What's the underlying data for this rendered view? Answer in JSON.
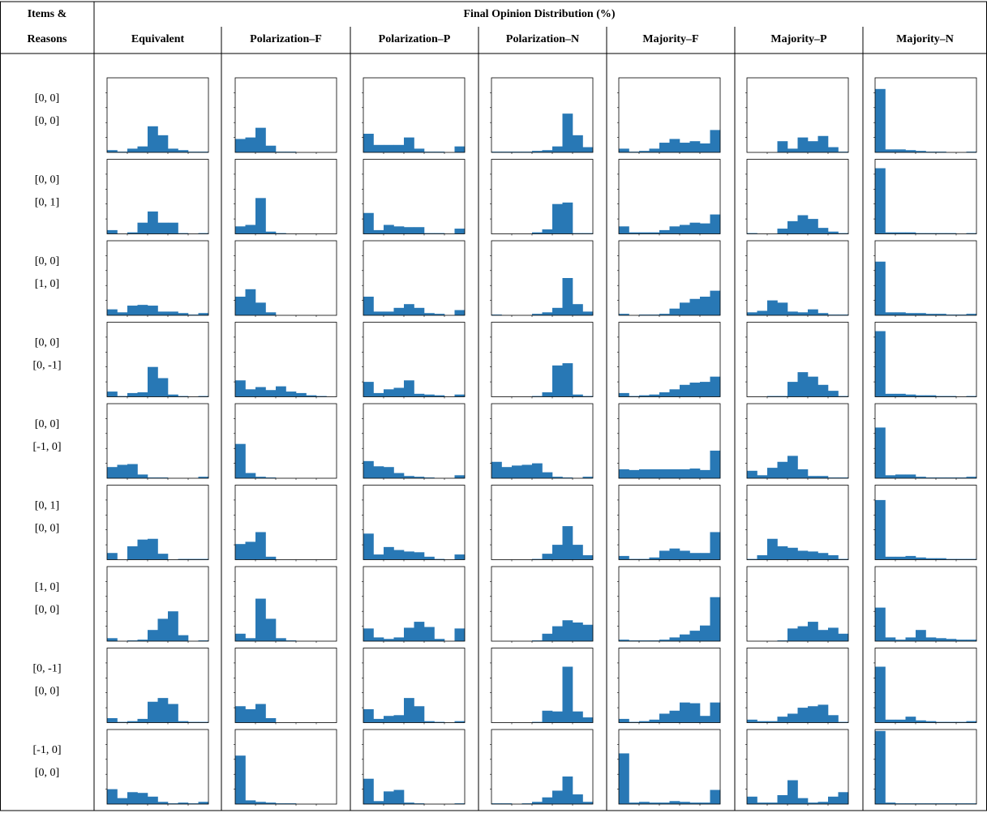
{
  "table": {
    "header_left_line1": "Items &",
    "header_left_line2": "Reasons",
    "header_title": "Final Opinion Distribution (%)",
    "columns": [
      "Equivalent",
      "Polarization–F",
      "Polarization–P",
      "Polarization–N",
      "Majority–F",
      "Majority–P",
      "Majority–N"
    ],
    "rows": [
      {
        "line1": "[0, 0]",
        "line2": "[0, 0]"
      },
      {
        "line1": "[0, 0]",
        "line2": "[0, 1]"
      },
      {
        "line1": "[0, 0]",
        "line2": "[1, 0]"
      },
      {
        "line1": "[0, 0]",
        "line2": "[0, -1]"
      },
      {
        "line1": "[0, 0]",
        "line2": "[-1, 0]"
      },
      {
        "line1": "[0, 1]",
        "line2": "[0, 0]"
      },
      {
        "line1": "[1, 0]",
        "line2": "[0, 0]"
      },
      {
        "line1": "[0, -1]",
        "line2": "[0, 0]"
      },
      {
        "line1": "[-1, 0]",
        "line2": "[0, 0]"
      }
    ]
  },
  "colors": {
    "bar": "#2878b5",
    "frame": "#000000"
  },
  "chart_data": {
    "type": "bar",
    "bins": 10,
    "ylim": [
      0,
      100
    ],
    "grid": false,
    "values": [
      [
        [
          3,
          1,
          5,
          8,
          35,
          23,
          5,
          3,
          1,
          1
        ],
        [
          18,
          20,
          33,
          9,
          1,
          1,
          0,
          0,
          0,
          0
        ],
        [
          25,
          10,
          10,
          10,
          20,
          5,
          1,
          1,
          0,
          8
        ],
        [
          1,
          1,
          1,
          1,
          2,
          3,
          8,
          52,
          23,
          7
        ],
        [
          5,
          1,
          2,
          5,
          13,
          18,
          13,
          15,
          12,
          30
        ],
        [
          0,
          0,
          0,
          15,
          5,
          20,
          15,
          22,
          7,
          1
        ],
        [
          85,
          4,
          4,
          3,
          2,
          1,
          1,
          0,
          0,
          1
        ]
      ],
      [
        [
          5,
          0,
          2,
          15,
          30,
          15,
          15,
          1,
          0,
          1
        ],
        [
          10,
          12,
          48,
          3,
          1,
          0,
          0,
          0,
          0,
          0
        ],
        [
          28,
          5,
          12,
          10,
          9,
          9,
          1,
          1,
          0,
          7
        ],
        [
          0,
          0,
          0,
          0,
          2,
          6,
          40,
          42,
          1,
          1
        ],
        [
          10,
          2,
          2,
          2,
          5,
          10,
          12,
          15,
          14,
          26
        ],
        [
          1,
          0,
          0,
          7,
          17,
          25,
          20,
          8,
          3,
          1
        ],
        [
          88,
          2,
          2,
          2,
          1,
          1,
          1,
          1,
          0,
          1
        ]
      ],
      [
        [
          8,
          4,
          13,
          14,
          13,
          5,
          5,
          3,
          1,
          3
        ],
        [
          25,
          35,
          17,
          4,
          0,
          0,
          0,
          0,
          0,
          0
        ],
        [
          25,
          5,
          5,
          10,
          15,
          10,
          3,
          2,
          0,
          7
        ],
        [
          1,
          0,
          0,
          0,
          2,
          4,
          10,
          50,
          15,
          5
        ],
        [
          2,
          0,
          1,
          1,
          2,
          9,
          17,
          22,
          25,
          33
        ],
        [
          4,
          6,
          20,
          17,
          5,
          4,
          8,
          3,
          1,
          1
        ],
        [
          72,
          4,
          4,
          3,
          3,
          2,
          2,
          1,
          1,
          2
        ]
      ],
      [
        [
          7,
          1,
          5,
          6,
          40,
          25,
          3,
          1,
          0,
          1
        ],
        [
          22,
          10,
          13,
          9,
          14,
          7,
          5,
          2,
          1,
          0
        ],
        [
          20,
          5,
          10,
          12,
          22,
          4,
          3,
          2,
          0,
          3
        ],
        [
          0,
          0,
          0,
          0,
          1,
          6,
          42,
          45,
          3,
          1
        ],
        [
          5,
          1,
          2,
          3,
          6,
          10,
          16,
          19,
          20,
          27
        ],
        [
          0,
          0,
          1,
          1,
          20,
          33,
          27,
          16,
          8,
          1
        ],
        [
          88,
          4,
          4,
          3,
          2,
          2,
          1,
          1,
          0,
          1
        ]
      ],
      [
        [
          15,
          18,
          19,
          5,
          1,
          1,
          0,
          0,
          0,
          2
        ],
        [
          46,
          7,
          2,
          1,
          0,
          0,
          0,
          0,
          0,
          0
        ],
        [
          23,
          16,
          15,
          7,
          3,
          2,
          1,
          0,
          0,
          4
        ],
        [
          22,
          15,
          17,
          18,
          20,
          8,
          2,
          1,
          0,
          2
        ],
        [
          12,
          11,
          12,
          12,
          12,
          12,
          12,
          13,
          11,
          37
        ],
        [
          10,
          4,
          14,
          22,
          30,
          12,
          3,
          3,
          1,
          1
        ],
        [
          68,
          4,
          5,
          5,
          2,
          1,
          1,
          1,
          1,
          2
        ]
      ],
      [
        [
          9,
          0,
          18,
          27,
          28,
          8,
          0,
          1,
          1,
          1
        ],
        [
          21,
          24,
          37,
          4,
          0,
          0,
          0,
          0,
          0,
          0
        ],
        [
          35,
          7,
          17,
          13,
          11,
          10,
          4,
          1,
          0,
          7
        ],
        [
          0,
          0,
          0,
          0,
          1,
          8,
          20,
          45,
          20,
          6
        ],
        [
          5,
          1,
          1,
          3,
          12,
          15,
          12,
          9,
          9,
          37
        ],
        [
          1,
          6,
          28,
          18,
          16,
          12,
          11,
          9,
          6,
          1
        ],
        [
          80,
          4,
          4,
          5,
          3,
          2,
          2,
          1,
          1,
          1
        ]
      ],
      [
        [
          4,
          0,
          1,
          2,
          15,
          30,
          40,
          8,
          0,
          1
        ],
        [
          10,
          4,
          57,
          30,
          4,
          1,
          0,
          0,
          0,
          0
        ],
        [
          17,
          5,
          3,
          5,
          18,
          26,
          19,
          3,
          0,
          17
        ],
        [
          0,
          0,
          0,
          0,
          1,
          10,
          20,
          28,
          25,
          22
        ],
        [
          2,
          1,
          1,
          1,
          2,
          5,
          9,
          14,
          21,
          59
        ],
        [
          0,
          0,
          0,
          1,
          17,
          20,
          26,
          15,
          18,
          10
        ],
        [
          45,
          5,
          2,
          5,
          15,
          5,
          4,
          3,
          2,
          2
        ]
      ],
      [
        [
          6,
          1,
          2,
          5,
          28,
          33,
          25,
          2,
          1,
          1
        ],
        [
          22,
          18,
          25,
          6,
          0,
          0,
          0,
          0,
          0,
          0
        ],
        [
          18,
          5,
          9,
          10,
          33,
          22,
          2,
          1,
          0,
          2
        ],
        [
          0,
          0,
          0,
          0,
          1,
          16,
          15,
          75,
          15,
          7
        ],
        [
          5,
          1,
          2,
          4,
          12,
          16,
          27,
          26,
          9,
          27
        ],
        [
          4,
          2,
          2,
          8,
          12,
          20,
          22,
          24,
          10,
          1
        ],
        [
          75,
          4,
          4,
          8,
          3,
          2,
          1,
          1,
          1,
          2
        ]
      ],
      [
        [
          20,
          8,
          16,
          15,
          10,
          3,
          1,
          2,
          1,
          3
        ],
        [
          65,
          5,
          3,
          2,
          1,
          1,
          0,
          0,
          0,
          0
        ],
        [
          34,
          4,
          17,
          19,
          2,
          1,
          0,
          0,
          0,
          1
        ],
        [
          1,
          1,
          0,
          1,
          3,
          9,
          18,
          37,
          13,
          3
        ],
        [
          68,
          2,
          3,
          2,
          2,
          4,
          3,
          2,
          2,
          19
        ],
        [
          10,
          2,
          2,
          12,
          32,
          8,
          2,
          3,
          10,
          16
        ],
        [
          98,
          2,
          1,
          1,
          1,
          1,
          1,
          1,
          1,
          1
        ]
      ]
    ]
  }
}
